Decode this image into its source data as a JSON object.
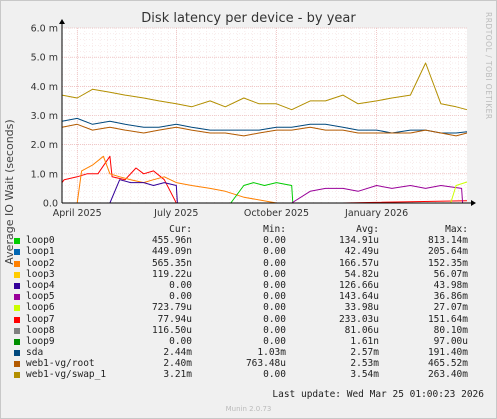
{
  "title": "Disk latency per device - by year",
  "side_text": "RRDTOOL / TOBI OETIKER",
  "footer": "Munin 2.0.73",
  "last_update": "Last update: Wed Mar 25 01:00:23 2026",
  "legend_headers": {
    "cur": "Cur:",
    "min": "Min:",
    "avg": "Avg:",
    "max": "Max:"
  },
  "legend": [
    {
      "name": "loop0",
      "color": "#00cc00",
      "cur": "455.96n",
      "min": "0.00",
      "avg": "134.91u",
      "max": "813.14m"
    },
    {
      "name": "loop1",
      "color": "#0066b3",
      "cur": "449.09n",
      "min": "0.00",
      "avg": "42.49u",
      "max": "205.64m"
    },
    {
      "name": "loop2",
      "color": "#ff8000",
      "cur": "565.35n",
      "min": "0.00",
      "avg": "166.57u",
      "max": "152.35m"
    },
    {
      "name": "loop3",
      "color": "#ffcc00",
      "cur": "119.22u",
      "min": "0.00",
      "avg": "54.82u",
      "max": "56.07m"
    },
    {
      "name": "loop4",
      "color": "#330099",
      "cur": "0.00",
      "min": "0.00",
      "avg": "126.66u",
      "max": "43.98m"
    },
    {
      "name": "loop5",
      "color": "#990099",
      "cur": "0.00",
      "min": "0.00",
      "avg": "143.64u",
      "max": "36.86m"
    },
    {
      "name": "loop6",
      "color": "#ccff00",
      "cur": "723.79u",
      "min": "0.00",
      "avg": "33.98u",
      "max": "27.07m"
    },
    {
      "name": "loop7",
      "color": "#ff0000",
      "cur": "77.94u",
      "min": "0.00",
      "avg": "233.03u",
      "max": "151.64m"
    },
    {
      "name": "loop8",
      "color": "#808080",
      "cur": "116.50u",
      "min": "0.00",
      "avg": "81.06u",
      "max": "80.10m"
    },
    {
      "name": "loop9",
      "color": "#008f00",
      "cur": "0.00",
      "min": "0.00",
      "avg": "1.61n",
      "max": "97.00u"
    },
    {
      "name": "sda",
      "color": "#00487d",
      "cur": "2.44m",
      "min": "1.03m",
      "avg": "2.57m",
      "max": "191.40m"
    },
    {
      "name": "web1-vg/root",
      "color": "#b35a00",
      "cur": "2.40m",
      "min": "763.48u",
      "avg": "2.53m",
      "max": "465.52m"
    },
    {
      "name": "web1-vg/swap_1",
      "color": "#b38f00",
      "cur": "3.21m",
      "min": "0.00",
      "avg": "3.54m",
      "max": "263.40m"
    }
  ],
  "chart_data": {
    "type": "line",
    "title": "Disk latency per device - by year",
    "ylabel": "Average IO Wait (seconds)",
    "xlabel": "",
    "ylim": [
      0,
      0.006
    ],
    "y_ticks": [
      0,
      0.001,
      0.002,
      0.003,
      0.004,
      0.005,
      0.006
    ],
    "y_tick_labels": [
      "0.0",
      "1.0 m",
      "2.0 m",
      "3.0 m",
      "4.0 m",
      "5.0 m",
      "6.0 m"
    ],
    "x_range": [
      "2025-03-18",
      "2026-03-25"
    ],
    "x_ticks": [
      "2025-04-01",
      "2025-07-01",
      "2025-10-01",
      "2026-01-01"
    ],
    "x_tick_labels": [
      "April 2025",
      "July 2025",
      "October 2025",
      "January 2026"
    ],
    "grid": true,
    "series": [
      {
        "name": "web1-vg/swap_1",
        "color": "#b38f00",
        "dates": [
          "2025-03-18",
          "2025-04-01",
          "2025-04-15",
          "2025-05-01",
          "2025-05-15",
          "2025-06-01",
          "2025-06-15",
          "2025-07-01",
          "2025-07-15",
          "2025-08-01",
          "2025-08-15",
          "2025-09-01",
          "2025-09-15",
          "2025-10-01",
          "2025-10-15",
          "2025-11-01",
          "2025-11-15",
          "2025-12-01",
          "2025-12-15",
          "2026-01-01",
          "2026-01-15",
          "2026-02-01",
          "2026-02-15",
          "2026-03-01",
          "2026-03-15",
          "2026-03-25"
        ],
        "values": [
          0.0037,
          0.0036,
          0.0039,
          0.0038,
          0.0037,
          0.0036,
          0.0035,
          0.0034,
          0.0033,
          0.0035,
          0.0033,
          0.0036,
          0.0034,
          0.0034,
          0.0032,
          0.0035,
          0.0035,
          0.0037,
          0.0034,
          0.0035,
          0.0036,
          0.0037,
          0.0048,
          0.0034,
          0.0033,
          0.0032
        ]
      },
      {
        "name": "sda",
        "color": "#00487d",
        "dates": [
          "2025-03-18",
          "2025-04-01",
          "2025-04-15",
          "2025-05-01",
          "2025-05-15",
          "2025-06-01",
          "2025-06-15",
          "2025-07-01",
          "2025-07-15",
          "2025-08-01",
          "2025-08-15",
          "2025-09-01",
          "2025-09-15",
          "2025-10-01",
          "2025-10-15",
          "2025-11-01",
          "2025-11-15",
          "2025-12-01",
          "2025-12-15",
          "2026-01-01",
          "2026-01-15",
          "2026-02-01",
          "2026-02-15",
          "2026-03-01",
          "2026-03-15",
          "2026-03-25"
        ],
        "values": [
          0.0028,
          0.0029,
          0.0027,
          0.0028,
          0.0027,
          0.0026,
          0.0026,
          0.0027,
          0.0026,
          0.0025,
          0.0025,
          0.0025,
          0.0025,
          0.0026,
          0.0026,
          0.0027,
          0.0027,
          0.0026,
          0.0025,
          0.0025,
          0.0024,
          0.0025,
          0.0025,
          0.0024,
          0.0024,
          0.00244
        ]
      },
      {
        "name": "web1-vg/root",
        "color": "#b35a00",
        "dates": [
          "2025-03-18",
          "2025-04-01",
          "2025-04-15",
          "2025-05-01",
          "2025-05-15",
          "2025-06-01",
          "2025-06-15",
          "2025-07-01",
          "2025-07-15",
          "2025-08-01",
          "2025-08-15",
          "2025-09-01",
          "2025-09-15",
          "2025-10-01",
          "2025-10-15",
          "2025-11-01",
          "2025-11-15",
          "2025-12-01",
          "2025-12-15",
          "2026-01-01",
          "2026-01-15",
          "2026-02-01",
          "2026-02-15",
          "2026-03-01",
          "2026-03-15",
          "2026-03-25"
        ],
        "values": [
          0.0026,
          0.0027,
          0.0025,
          0.0026,
          0.0025,
          0.0024,
          0.0025,
          0.0026,
          0.0025,
          0.0024,
          0.0024,
          0.0023,
          0.0024,
          0.0025,
          0.0025,
          0.0026,
          0.0025,
          0.0025,
          0.0024,
          0.0024,
          0.0024,
          0.0024,
          0.0025,
          0.0024,
          0.0023,
          0.0024
        ]
      },
      {
        "name": "loop7",
        "color": "#ff0000",
        "dates": [
          "2025-03-18",
          "2025-03-20",
          "2025-04-01",
          "2025-04-10",
          "2025-04-20",
          "2025-05-01",
          "2025-05-03",
          "2025-05-15",
          "2025-05-25",
          "2025-06-01",
          "2025-06-10",
          "2025-06-20",
          "2025-07-01",
          "2025-09-01",
          "2025-12-01",
          "2026-03-25"
        ],
        "values": [
          0.0007,
          0.0008,
          0.0009,
          0.001,
          0.001,
          0.0016,
          0.0009,
          0.0008,
          0.0012,
          0.001,
          0.0011,
          0.0008,
          0.0,
          0.0,
          0.0,
          8e-05
        ]
      },
      {
        "name": "loop2",
        "color": "#ff8000",
        "dates": [
          "2025-03-18",
          "2025-04-01",
          "2025-04-05",
          "2025-04-15",
          "2025-04-25",
          "2025-05-01",
          "2025-05-10",
          "2025-05-20",
          "2025-06-01",
          "2025-06-10",
          "2025-06-20",
          "2025-07-01",
          "2025-07-15",
          "2025-08-01",
          "2025-08-15",
          "2025-09-01",
          "2025-10-01",
          "2026-03-25"
        ],
        "values": [
          0.0,
          0.0,
          0.0011,
          0.0013,
          0.0016,
          0.001,
          0.0009,
          0.0008,
          0.0007,
          0.0008,
          0.0009,
          0.0007,
          0.0006,
          0.0005,
          0.0004,
          0.0002,
          0.0,
          0.0
        ]
      },
      {
        "name": "loop4",
        "color": "#330099",
        "dates": [
          "2025-03-18",
          "2025-05-01",
          "2025-05-10",
          "2025-05-20",
          "2025-06-01",
          "2025-06-10",
          "2025-06-20",
          "2025-07-01",
          "2025-07-02",
          "2026-03-25"
        ],
        "values": [
          0.0,
          0.0,
          0.0008,
          0.0007,
          0.0007,
          0.0006,
          0.0007,
          0.0006,
          0.0,
          0.0
        ]
      },
      {
        "name": "loop0",
        "color": "#00cc00",
        "dates": [
          "2025-03-18",
          "2025-08-20",
          "2025-09-01",
          "2025-09-10",
          "2025-09-20",
          "2025-10-01",
          "2025-10-15",
          "2025-10-16",
          "2026-03-25"
        ],
        "values": [
          0.0,
          0.0,
          0.0006,
          0.0007,
          0.0006,
          0.0007,
          0.0006,
          0.0,
          0.0
        ]
      },
      {
        "name": "loop5",
        "color": "#990099",
        "dates": [
          "2025-03-18",
          "2025-10-15",
          "2025-11-01",
          "2025-11-15",
          "2025-12-01",
          "2025-12-15",
          "2026-01-01",
          "2026-01-15",
          "2026-02-01",
          "2026-02-15",
          "2026-03-01",
          "2026-03-20",
          "2026-03-21",
          "2026-03-25"
        ],
        "values": [
          0.0,
          0.0,
          0.0004,
          0.0005,
          0.0005,
          0.0004,
          0.0006,
          0.0005,
          0.0006,
          0.0005,
          0.0006,
          0.0005,
          0.0,
          0.0
        ]
      },
      {
        "name": "loop6",
        "color": "#ccff00",
        "dates": [
          "2025-03-18",
          "2026-03-10",
          "2026-03-15",
          "2026-03-25"
        ],
        "values": [
          0.0,
          0.0,
          0.0006,
          0.00072
        ]
      }
    ]
  }
}
